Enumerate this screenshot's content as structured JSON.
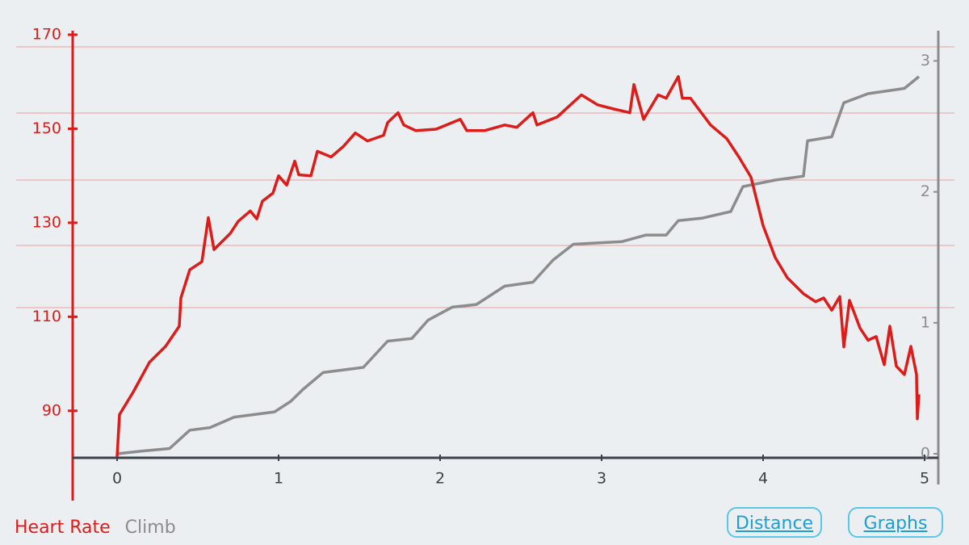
{
  "chart_data": {
    "type": "line",
    "xlim": [
      0,
      5
    ],
    "xticks": [
      0,
      1,
      2,
      3,
      4,
      5
    ],
    "ylim": [
      80,
      170
    ],
    "yticks": [
      90,
      110,
      130,
      150,
      170
    ],
    "y2lim": [
      0,
      3.2
    ],
    "y2ticks": [
      0,
      1,
      2,
      3
    ],
    "series": [
      {
        "name": "Heart Rate",
        "color": "#dd1c1a",
        "x": [
          0,
          0.015,
          0.1,
          0.2,
          0.3,
          0.385,
          0.395,
          0.45,
          0.525,
          0.565,
          0.6,
          0.7,
          0.75,
          0.825,
          0.865,
          0.9,
          0.965,
          1.0,
          1.05,
          1.1,
          1.125,
          1.2,
          1.24,
          1.325,
          1.4,
          1.475,
          1.55,
          1.65,
          1.675,
          1.74,
          1.775,
          1.85,
          1.975,
          2.125,
          2.165,
          2.275,
          2.4,
          2.475,
          2.575,
          2.6,
          2.725,
          2.875,
          2.975,
          3.075,
          3.175,
          3.2,
          3.26,
          3.35,
          3.4,
          3.475,
          3.5,
          3.55,
          3.675,
          3.775,
          3.85,
          3.925,
          4.0,
          4.075,
          4.15,
          4.25,
          4.325,
          4.375,
          4.425,
          4.475,
          4.5,
          4.535,
          4.6,
          4.65,
          4.7,
          4.75,
          4.785,
          4.825,
          4.875,
          4.915,
          4.95,
          4.955,
          4.965
        ],
        "values": [
          80.3,
          89.2,
          94,
          100.3,
          103.7,
          108,
          114,
          120,
          121.7,
          131.1,
          124.3,
          127.7,
          130.3,
          132.5,
          130.8,
          134.6,
          136.3,
          140,
          138,
          143.1,
          140.2,
          140,
          145.2,
          144,
          146.2,
          149.1,
          147.4,
          148.6,
          151.3,
          153.4,
          150.8,
          149.6,
          149.9,
          152,
          149.6,
          149.6,
          150.8,
          150.3,
          153.4,
          150.8,
          152.5,
          157.2,
          155.1,
          154.2,
          153.4,
          159.4,
          152,
          157.2,
          156.5,
          161.1,
          156.5,
          156.5,
          150.8,
          147.9,
          144,
          139.7,
          129.4,
          122.6,
          118.3,
          114.9,
          113.2,
          114,
          111.4,
          114.3,
          103.6,
          113.5,
          107.6,
          105,
          105.8,
          99.8,
          108,
          99.5,
          97.7,
          103.7,
          97.7,
          88.3,
          93.5
        ]
      },
      {
        "name": "Climb",
        "color": "#8c8c8c",
        "axis": "y2",
        "x": [
          0,
          0.15,
          0.325,
          0.45,
          0.575,
          0.725,
          0.975,
          1.075,
          1.15,
          1.275,
          1.525,
          1.675,
          1.825,
          1.925,
          2.075,
          2.225,
          2.4,
          2.575,
          2.7,
          2.825,
          3.125,
          3.275,
          3.4,
          3.475,
          3.625,
          3.8,
          3.875,
          4.075,
          4.25,
          4.275,
          4.425,
          4.5,
          4.65,
          4.875,
          4.965
        ],
        "values": [
          0,
          0.02,
          0.04,
          0.18,
          0.2,
          0.28,
          0.32,
          0.4,
          0.49,
          0.62,
          0.66,
          0.86,
          0.88,
          1.02,
          1.12,
          1.14,
          1.28,
          1.31,
          1.48,
          1.6,
          1.62,
          1.67,
          1.67,
          1.78,
          1.8,
          1.85,
          2.04,
          2.09,
          2.12,
          2.39,
          2.42,
          2.68,
          2.75,
          2.79,
          2.88
        ]
      }
    ]
  },
  "buttons": [
    "Distance",
    "Graphs"
  ]
}
